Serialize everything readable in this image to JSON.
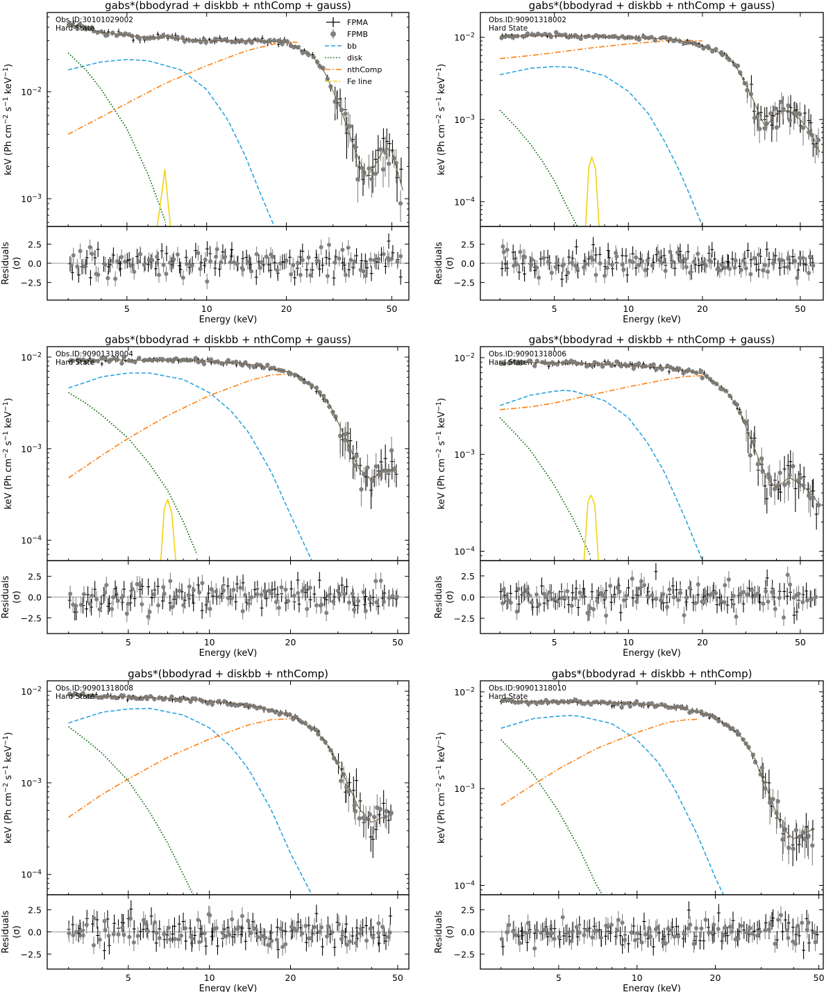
{
  "figure": {
    "xlabel": "Energy (keV)",
    "ylabel_top": "keV (Ph cm$^{-2}$ s$^{-1}$ keV$^{-1}$)",
    "ylabel_bottom": "Residuals",
    "ylabel_bottom_sub": "(σ)",
    "state_label": "Hard State",
    "xticks": [
      "5",
      "10",
      "20",
      "50"
    ],
    "residual_ticks": [
      "2.5",
      "0.0",
      "−2.5"
    ],
    "legend": [
      "FPMA",
      "FPMB",
      "bb",
      "disk",
      "nthComp",
      "Fe line"
    ]
  },
  "colors": {
    "fpma": "#000000",
    "fpmb": "#808080",
    "bb": "#29a3e0",
    "disk": "#006400",
    "nthcomp": "#ff7f0e",
    "feline": "#f2d20f",
    "model": "#7a6a50"
  },
  "chart_data": [
    {
      "type": "scatter",
      "title": "gabs*(bbodyrad + diskbb + nthComp + gauss)",
      "obsid": "Obs.ID:30101029002",
      "x_scale": "log",
      "y_scale": "log",
      "xlim": [
        2.5,
        58
      ],
      "ylim": [
        0.00055,
        0.055
      ],
      "ytick_labels": [
        "10$^{-2}$",
        "10$^{-3}$"
      ],
      "total_spectrum": {
        "x": [
          3,
          4,
          6,
          6.5,
          7,
          8,
          10,
          15,
          20,
          25,
          28,
          32,
          36,
          40,
          43,
          47,
          50,
          55
        ],
        "y": [
          0.043,
          0.036,
          0.032,
          0.032,
          0.033,
          0.031,
          0.03,
          0.03,
          0.029,
          0.022,
          0.015,
          0.007,
          0.003,
          0.0016,
          0.002,
          0.003,
          0.0028,
          0.0012
        ]
      },
      "components": {
        "bb": {
          "x": [
            3,
            4,
            5,
            6,
            8,
            10,
            12,
            14,
            16,
            18
          ],
          "y": [
            0.016,
            0.019,
            0.02,
            0.0195,
            0.016,
            0.0105,
            0.0055,
            0.0025,
            0.0011,
            0.00055
          ]
        },
        "disk": {
          "x": [
            3,
            3.5,
            4,
            5,
            6,
            6.5,
            7
          ],
          "y": [
            0.023,
            0.016,
            0.0105,
            0.0045,
            0.0017,
            0.001,
            0.0006
          ]
        },
        "nthcomp": {
          "x": [
            3,
            4,
            5,
            7,
            10,
            14,
            18,
            20,
            22
          ],
          "y": [
            0.004,
            0.0058,
            0.0078,
            0.012,
            0.0175,
            0.024,
            0.028,
            0.029,
            0.029
          ]
        },
        "feline": {
          "x": [
            6.5,
            6.8,
            6.95,
            7.1,
            7.3
          ],
          "y": [
            0.00055,
            0.0012,
            0.0019,
            0.0011,
            0.00055
          ]
        }
      },
      "residuals": {
        "ylim": [
          -4.8,
          4.8
        ],
        "x_range": [
          3,
          55
        ],
        "amplitude": 1.6
      }
    },
    {
      "type": "scatter",
      "title": "gabs*(bbodyrad + diskbb + nthComp + gauss)",
      "obsid": "Obs.ID:90901318002",
      "x_scale": "log",
      "y_scale": "log",
      "xlim": [
        2.5,
        62
      ],
      "ylim": [
        5e-05,
        0.02
      ],
      "ytick_labels": [
        "10$^{-2}$",
        "10$^{-3}$",
        "10$^{-4}$"
      ],
      "total_spectrum": {
        "x": [
          3,
          4,
          6,
          8,
          10,
          15,
          20,
          25,
          28,
          32,
          36,
          40,
          45,
          50,
          55,
          60
        ],
        "y": [
          0.0102,
          0.0105,
          0.0104,
          0.0102,
          0.01,
          0.0095,
          0.008,
          0.006,
          0.004,
          0.0018,
          0.0008,
          0.0012,
          0.0013,
          0.001,
          0.0007,
          0.0004
        ]
      },
      "components": {
        "bb": {
          "x": [
            3,
            4,
            5,
            6,
            8,
            10,
            12,
            14,
            16,
            18,
            20
          ],
          "y": [
            0.0035,
            0.0042,
            0.0044,
            0.0043,
            0.0034,
            0.0022,
            0.0012,
            0.00055,
            0.00025,
            0.00011,
            5e-05
          ]
        },
        "disk": {
          "x": [
            3,
            3.5,
            4,
            4.5,
            5,
            5.5,
            6.2
          ],
          "y": [
            0.0013,
            0.0008,
            0.0005,
            0.0003,
            0.00018,
            0.0001,
            5e-05
          ]
        },
        "nthcomp": {
          "x": [
            3,
            4,
            5,
            7,
            10,
            14,
            17,
            20
          ],
          "y": [
            0.0055,
            0.006,
            0.0065,
            0.0074,
            0.0083,
            0.009,
            0.0092,
            0.009
          ]
        },
        "feline": {
          "x": [
            6.7,
            6.9,
            7.1,
            7.35,
            7.6
          ],
          "y": [
            5e-05,
            0.00026,
            0.00035,
            0.00025,
            5e-05
          ]
        }
      },
      "residuals": {
        "ylim": [
          -4.8,
          4.8
        ],
        "x_range": [
          3,
          58
        ],
        "amplitude": 1.6
      }
    },
    {
      "type": "scatter",
      "title": "gabs*(bbodyrad + diskbb + nthComp + gauss)",
      "obsid": "Obs.ID:90901318004",
      "x_scale": "log",
      "y_scale": "log",
      "xlim": [
        2.5,
        55
      ],
      "ylim": [
        6e-05,
        0.013
      ],
      "ytick_labels": [
        "10$^{-2}$",
        "10$^{-3}$",
        "10$^{-4}$"
      ],
      "total_spectrum": {
        "x": [
          3,
          4,
          6,
          8,
          10,
          15,
          20,
          25,
          28,
          32,
          36,
          40,
          44,
          48,
          50
        ],
        "y": [
          0.0092,
          0.0093,
          0.0092,
          0.0093,
          0.009,
          0.0082,
          0.0068,
          0.0045,
          0.003,
          0.0013,
          0.0006,
          0.00045,
          0.0006,
          0.00058,
          0.00052
        ]
      },
      "components": {
        "bb": {
          "x": [
            3,
            4,
            5,
            6,
            8,
            10,
            12,
            14,
            17,
            20,
            24
          ],
          "y": [
            0.0046,
            0.0061,
            0.0067,
            0.0067,
            0.0057,
            0.0041,
            0.0026,
            0.0015,
            0.00055,
            0.00019,
            6e-05
          ]
        },
        "disk": {
          "x": [
            3,
            3.5,
            4,
            5,
            6,
            7,
            8,
            9
          ],
          "y": [
            0.0041,
            0.0031,
            0.0023,
            0.0013,
            0.00068,
            0.00035,
            0.00016,
            7e-05
          ]
        },
        "nthcomp": {
          "x": [
            3,
            4,
            5,
            7,
            10,
            14,
            17,
            20
          ],
          "y": [
            0.00048,
            0.00085,
            0.0013,
            0.0023,
            0.0038,
            0.0055,
            0.0064,
            0.0065
          ]
        },
        "feline": {
          "x": [
            6.6,
            6.8,
            7.0,
            7.25,
            7.5
          ],
          "y": [
            6e-05,
            0.00022,
            0.00028,
            0.0002,
            6e-05
          ]
        }
      },
      "residuals": {
        "ylim": [
          -4.4,
          4.4
        ],
        "x_range": [
          3,
          50
        ],
        "amplitude": 1.5
      }
    },
    {
      "type": "scatter",
      "title": "gabs*(bbodyrad + diskbb + nthComp + gauss)",
      "obsid": "Obs.ID:90901318006",
      "x_scale": "log",
      "y_scale": "log",
      "xlim": [
        2.5,
        62
      ],
      "ylim": [
        8e-05,
        0.013
      ],
      "ytick_labels": [
        "10$^{-2}$",
        "10$^{-3}$",
        "10$^{-4}$"
      ],
      "total_spectrum": {
        "x": [
          3,
          4,
          6,
          8,
          10,
          15,
          20,
          25,
          28,
          32,
          36,
          40,
          45,
          50,
          55,
          60
        ],
        "y": [
          0.0088,
          0.0089,
          0.0088,
          0.0086,
          0.0083,
          0.0078,
          0.0068,
          0.0045,
          0.003,
          0.0013,
          0.0006,
          0.00045,
          0.00058,
          0.0005,
          0.0004,
          0.0003
        ]
      },
      "components": {
        "bb": {
          "x": [
            3,
            4,
            5,
            5.5,
            6,
            8,
            10,
            12,
            14,
            17,
            20
          ],
          "y": [
            0.0032,
            0.0041,
            0.0045,
            0.0046,
            0.0045,
            0.0036,
            0.0024,
            0.0013,
            0.00066,
            0.00022,
            8e-05
          ]
        },
        "disk": {
          "x": [
            3,
            3.5,
            4,
            5,
            6,
            7
          ],
          "y": [
            0.0024,
            0.0016,
            0.0011,
            0.00048,
            0.00021,
            9e-05
          ]
        },
        "nthcomp": {
          "x": [
            3,
            4,
            5,
            7,
            10,
            14,
            17,
            20
          ],
          "y": [
            0.0029,
            0.0031,
            0.0034,
            0.0041,
            0.005,
            0.0059,
            0.0064,
            0.0065
          ]
        },
        "feline": {
          "x": [
            6.6,
            6.85,
            7.05,
            7.3,
            7.55
          ],
          "y": [
            8e-05,
            0.00033,
            0.00038,
            0.0003,
            8e-05
          ]
        }
      },
      "residuals": {
        "ylim": [
          -4.3,
          4.3
        ],
        "x_range": [
          3,
          58
        ],
        "amplitude": 1.6
      }
    },
    {
      "type": "scatter",
      "title": "gabs*(bbodyrad + diskbb + nthComp)",
      "obsid": "Obs.ID:90901318008",
      "x_scale": "log",
      "y_scale": "log",
      "xlim": [
        2.5,
        55
      ],
      "ylim": [
        6e-05,
        0.013
      ],
      "ytick_labels": [
        "10$^{-2}$",
        "10$^{-3}$",
        "10$^{-4}$"
      ],
      "total_spectrum": {
        "x": [
          3,
          4,
          6,
          8,
          10,
          15,
          20,
          25,
          28,
          32,
          36,
          40,
          44,
          48
        ],
        "y": [
          0.0091,
          0.0088,
          0.0085,
          0.0082,
          0.0078,
          0.0068,
          0.0055,
          0.0036,
          0.0024,
          0.0011,
          0.00052,
          0.00037,
          0.00042,
          0.00045
        ]
      },
      "components": {
        "bb": {
          "x": [
            3,
            4,
            5,
            6,
            8,
            10,
            12,
            14,
            17,
            20,
            24
          ],
          "y": [
            0.0045,
            0.0059,
            0.0064,
            0.0065,
            0.0055,
            0.004,
            0.0025,
            0.0014,
            0.0005,
            0.00017,
            6e-05
          ]
        },
        "disk": {
          "x": [
            3,
            3.5,
            4,
            5,
            6,
            7,
            8,
            8.7
          ],
          "y": [
            0.0041,
            0.0029,
            0.0021,
            0.00105,
            0.00048,
            0.00022,
            0.0001,
            6e-05
          ]
        },
        "nthcomp": {
          "x": [
            3,
            4,
            5,
            7,
            10,
            14,
            17,
            20
          ],
          "y": [
            0.00042,
            0.00075,
            0.0011,
            0.0019,
            0.003,
            0.0043,
            0.0049,
            0.005
          ]
        }
      },
      "residuals": {
        "ylim": [
          -4.2,
          4.2
        ],
        "x_range": [
          3,
          48
        ],
        "amplitude": 1.5
      }
    },
    {
      "type": "scatter",
      "title": "gabs*(bbodyrad + diskbb + nthComp)",
      "obsid": "Obs.ID:90901318010",
      "x_scale": "log",
      "y_scale": "log",
      "xlim": [
        2.5,
        52
      ],
      "ylim": [
        8e-05,
        0.013
      ],
      "ytick_labels": [
        "10$^{-2}$",
        "10$^{-3}$",
        "10$^{-4}$"
      ],
      "total_spectrum": {
        "x": [
          3,
          4,
          6,
          8,
          10,
          15,
          20,
          25,
          28,
          32,
          36,
          40,
          44,
          48
        ],
        "y": [
          0.0081,
          0.0079,
          0.0078,
          0.0077,
          0.0075,
          0.0068,
          0.0055,
          0.0035,
          0.0022,
          0.0009,
          0.0004,
          0.0003,
          0.00035,
          0.00038
        ]
      },
      "components": {
        "bb": {
          "x": [
            3,
            4,
            5,
            5.5,
            6,
            8,
            10,
            12,
            14,
            17,
            20,
            22
          ],
          "y": [
            0.0042,
            0.0053,
            0.0056,
            0.0057,
            0.0056,
            0.0047,
            0.0032,
            0.0019,
            0.00098,
            0.00034,
            0.00012,
            7e-05
          ]
        },
        "disk": {
          "x": [
            3,
            3.5,
            4,
            5,
            6,
            7,
            7.6
          ],
          "y": [
            0.0032,
            0.0021,
            0.0014,
            0.00058,
            0.00024,
            0.0001,
            7e-05
          ]
        },
        "nthcomp": {
          "x": [
            3,
            4,
            5,
            7,
            10,
            13,
            15,
            17
          ],
          "y": [
            0.00067,
            0.0011,
            0.0016,
            0.0026,
            0.0038,
            0.0048,
            0.0051,
            0.0052
          ]
        }
      },
      "residuals": {
        "ylim": [
          -4.2,
          4.2
        ],
        "x_range": [
          3,
          50
        ],
        "amplitude": 1.5
      }
    }
  ]
}
